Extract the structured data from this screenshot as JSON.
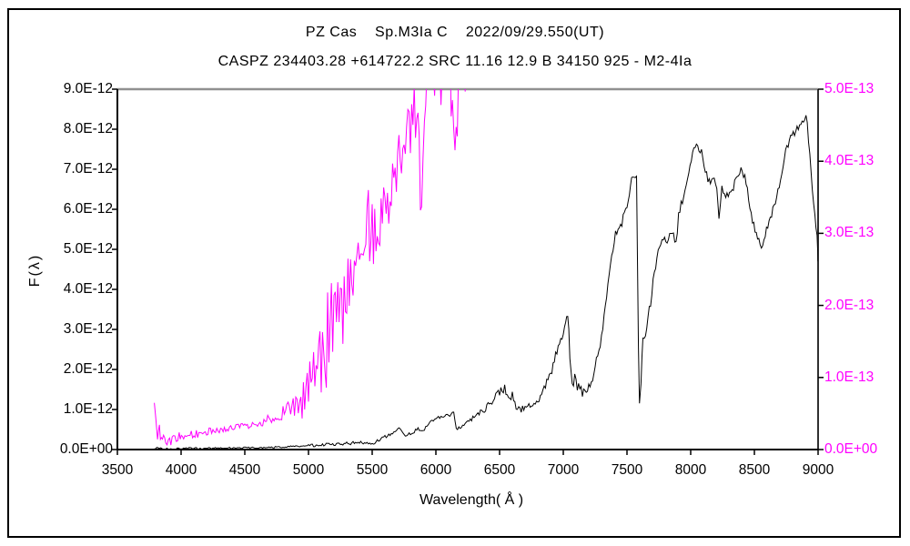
{
  "window": {
    "background": "#ffffff",
    "outer_border_color": "#000000"
  },
  "chart_data": {
    "type": "line",
    "title": "PZ Cas    Sp.M3Ia C    2022/09/29.550(UT)",
    "subtitle": "CASPZ 234403.28 +614722.2 SRC 11.16 12.9 B 34150 925 - M2-4Ia",
    "xlabel": "Wavelength( Å )",
    "ylabel_left": "F(λ)",
    "grid": false,
    "legend_position": "none",
    "xlim": [
      3500,
      9000
    ],
    "x_ticks": [
      "3500",
      "4000",
      "4500",
      "5000",
      "5500",
      "6000",
      "6500",
      "7000",
      "7500",
      "8000",
      "8500",
      "9000"
    ],
    "y_left": {
      "unit_exponent": "1E-12",
      "lim": [
        0,
        9
      ],
      "ticks": [
        "0.0E+00",
        "1.0E-12",
        "2.0E-12",
        "3.0E-12",
        "4.0E-12",
        "5.0E-12",
        "6.0E-12",
        "7.0E-12",
        "8.0E-12",
        "9.0E-12"
      ],
      "color": "#000000"
    },
    "y_right": {
      "unit_exponent": "1E-13",
      "lim": [
        0,
        5
      ],
      "ticks": [
        "0.0E+00",
        "1.0E-13",
        "2.0E-13",
        "3.0E-13",
        "4.0E-13",
        "5.0E-13"
      ],
      "color": "#ff00ff"
    },
    "frame_colors": {
      "top": "#909090",
      "right": "#303030",
      "left": "#000000",
      "bottom": "#000000"
    },
    "series": [
      {
        "name": "red-region-spectrum-black",
        "axis": "left",
        "color": "#000000",
        "points_format": [
          "wavelength_A",
          "flux_1E-12",
          "noise_amplitude"
        ],
        "points": [
          [
            3790,
            0.03,
            0.03
          ],
          [
            3850,
            0.02,
            0.03
          ],
          [
            3900,
            0.02,
            0.02
          ],
          [
            3980,
            0.02,
            0.02
          ],
          [
            4060,
            0.03,
            0.02
          ],
          [
            4150,
            0.03,
            0.03
          ],
          [
            4250,
            0.03,
            0.02
          ],
          [
            4350,
            0.04,
            0.02
          ],
          [
            4450,
            0.04,
            0.02
          ],
          [
            4550,
            0.05,
            0.02
          ],
          [
            4650,
            0.05,
            0.02
          ],
          [
            4750,
            0.06,
            0.02
          ],
          [
            4850,
            0.07,
            0.02
          ],
          [
            4950,
            0.08,
            0.03
          ],
          [
            5000,
            0.1,
            0.04
          ],
          [
            5100,
            0.12,
            0.04
          ],
          [
            5200,
            0.13,
            0.04
          ],
          [
            5300,
            0.15,
            0.04
          ],
          [
            5400,
            0.18,
            0.04
          ],
          [
            5460,
            0.16,
            0.03
          ],
          [
            5510,
            0.14,
            0.03
          ],
          [
            5560,
            0.26,
            0.04
          ],
          [
            5620,
            0.35,
            0.05
          ],
          [
            5670,
            0.46,
            0.05
          ],
          [
            5710,
            0.5,
            0.05
          ],
          [
            5760,
            0.36,
            0.04
          ],
          [
            5810,
            0.42,
            0.04
          ],
          [
            5860,
            0.52,
            0.05
          ],
          [
            5900,
            0.48,
            0.04
          ],
          [
            5950,
            0.66,
            0.05
          ],
          [
            6000,
            0.76,
            0.05
          ],
          [
            6060,
            0.82,
            0.05
          ],
          [
            6110,
            0.86,
            0.06
          ],
          [
            6140,
            0.9,
            0.04
          ],
          [
            6160,
            0.52,
            0.04
          ],
          [
            6210,
            0.56,
            0.05
          ],
          [
            6260,
            0.72,
            0.06
          ],
          [
            6310,
            0.86,
            0.07
          ],
          [
            6360,
            0.96,
            0.08
          ],
          [
            6410,
            1.1,
            0.1
          ],
          [
            6460,
            1.28,
            0.1
          ],
          [
            6510,
            1.45,
            0.12
          ],
          [
            6540,
            1.55,
            0.1
          ],
          [
            6570,
            1.26,
            0.08
          ],
          [
            6600,
            1.38,
            0.1
          ],
          [
            6630,
            1.06,
            0.08
          ],
          [
            6670,
            1.0,
            0.08
          ],
          [
            6710,
            1.06,
            0.08
          ],
          [
            6760,
            1.16,
            0.07
          ],
          [
            6810,
            1.22,
            0.08
          ],
          [
            6860,
            1.62,
            0.1
          ],
          [
            6910,
            2.0,
            0.12
          ],
          [
            6960,
            2.55,
            0.12
          ],
          [
            7010,
            3.05,
            0.12
          ],
          [
            7035,
            3.4,
            0.08
          ],
          [
            7060,
            1.9,
            0.2
          ],
          [
            7110,
            1.55,
            0.2
          ],
          [
            7160,
            1.45,
            0.15
          ],
          [
            7210,
            1.52,
            0.15
          ],
          [
            7260,
            2.25,
            0.15
          ],
          [
            7310,
            2.95,
            0.12
          ],
          [
            7360,
            4.45,
            0.15
          ],
          [
            7410,
            5.4,
            0.15
          ],
          [
            7460,
            5.6,
            0.2
          ],
          [
            7510,
            6.3,
            0.15
          ],
          [
            7545,
            6.9,
            0.1
          ],
          [
            7575,
            6.8,
            0.05
          ],
          [
            7590,
            2.6,
            0.1
          ],
          [
            7598,
            1.15,
            0.05
          ],
          [
            7610,
            1.7,
            0.3
          ],
          [
            7625,
            2.6,
            0.3
          ],
          [
            7655,
            2.95,
            0.15
          ],
          [
            7705,
            4.2,
            0.15
          ],
          [
            7755,
            5.1,
            0.12
          ],
          [
            7805,
            5.2,
            0.15
          ],
          [
            7855,
            5.35,
            0.15
          ],
          [
            7885,
            5.15,
            0.1
          ],
          [
            7905,
            5.8,
            0.12
          ],
          [
            7955,
            6.55,
            0.12
          ],
          [
            8005,
            7.3,
            0.1
          ],
          [
            8045,
            7.65,
            0.08
          ],
          [
            8085,
            7.4,
            0.15
          ],
          [
            8125,
            6.85,
            0.15
          ],
          [
            8165,
            6.7,
            0.12
          ],
          [
            8205,
            6.6,
            0.15
          ],
          [
            8222,
            5.7,
            0.08
          ],
          [
            8245,
            6.5,
            0.1
          ],
          [
            8285,
            6.35,
            0.1
          ],
          [
            8325,
            6.45,
            0.12
          ],
          [
            8365,
            6.8,
            0.1
          ],
          [
            8395,
            7.0,
            0.08
          ],
          [
            8425,
            6.8,
            0.1
          ],
          [
            8455,
            6.3,
            0.1
          ],
          [
            8485,
            5.7,
            0.1
          ],
          [
            8525,
            5.25,
            0.1
          ],
          [
            8555,
            5.05,
            0.08
          ],
          [
            8585,
            5.4,
            0.1
          ],
          [
            8625,
            5.8,
            0.1
          ],
          [
            8665,
            6.2,
            0.1
          ],
          [
            8705,
            6.7,
            0.1
          ],
          [
            8745,
            7.4,
            0.1
          ],
          [
            8785,
            7.8,
            0.1
          ],
          [
            8825,
            8.0,
            0.12
          ],
          [
            8865,
            8.15,
            0.12
          ],
          [
            8895,
            8.3,
            0.1
          ],
          [
            8915,
            8.2,
            0.1
          ],
          [
            8935,
            7.4,
            0.15
          ],
          [
            8955,
            6.55,
            0.1
          ],
          [
            8975,
            5.8,
            0.1
          ],
          [
            8992,
            5.3,
            0.08
          ],
          [
            9000,
            4.7,
            0.03
          ]
        ]
      },
      {
        "name": "blue-region-spectrum-magenta",
        "axis": "right",
        "color": "#ff00ff",
        "points_format": [
          "wavelength_A",
          "flux_1E-13",
          "noise_amplitude"
        ],
        "points": [
          [
            3790,
            0.65,
            0.05
          ],
          [
            3802,
            0.4,
            0.1
          ],
          [
            3815,
            0.22,
            0.08
          ],
          [
            3830,
            0.3,
            0.1
          ],
          [
            3845,
            0.12,
            0.08
          ],
          [
            3862,
            0.18,
            0.08
          ],
          [
            3880,
            0.1,
            0.07
          ],
          [
            3900,
            0.14,
            0.08
          ],
          [
            3920,
            0.08,
            0.06
          ],
          [
            3940,
            0.15,
            0.07
          ],
          [
            3962,
            0.12,
            0.06
          ],
          [
            3985,
            0.18,
            0.06
          ],
          [
            4010,
            0.16,
            0.05
          ],
          [
            4060,
            0.2,
            0.05
          ],
          [
            4110,
            0.21,
            0.06
          ],
          [
            4160,
            0.23,
            0.05
          ],
          [
            4210,
            0.25,
            0.05
          ],
          [
            4260,
            0.26,
            0.05
          ],
          [
            4310,
            0.28,
            0.05
          ],
          [
            4360,
            0.3,
            0.05
          ],
          [
            4410,
            0.3,
            0.06
          ],
          [
            4460,
            0.32,
            0.05
          ],
          [
            4510,
            0.33,
            0.05
          ],
          [
            4560,
            0.34,
            0.05
          ],
          [
            4610,
            0.37,
            0.06
          ],
          [
            4660,
            0.4,
            0.07
          ],
          [
            4710,
            0.44,
            0.08
          ],
          [
            4760,
            0.48,
            0.09
          ],
          [
            4810,
            0.52,
            0.1
          ],
          [
            4840,
            0.6,
            0.12
          ],
          [
            4870,
            0.56,
            0.1
          ],
          [
            4900,
            0.66,
            0.2
          ],
          [
            4930,
            0.85,
            0.45
          ],
          [
            4960,
            0.9,
            0.55
          ],
          [
            4990,
            1.0,
            0.65
          ],
          [
            5030,
            1.05,
            0.55
          ],
          [
            5080,
            1.25,
            0.55
          ],
          [
            5130,
            1.45,
            0.7
          ],
          [
            5160,
            1.6,
            0.9
          ],
          [
            5200,
            1.7,
            0.55
          ],
          [
            5250,
            1.9,
            0.5
          ],
          [
            5300,
            2.1,
            0.55
          ],
          [
            5350,
            2.2,
            0.45
          ],
          [
            5400,
            2.45,
            0.5
          ],
          [
            5440,
            2.65,
            0.55
          ],
          [
            5470,
            2.9,
            0.75
          ],
          [
            5510,
            2.95,
            0.4
          ],
          [
            5550,
            3.15,
            0.45
          ],
          [
            5600,
            3.3,
            0.45
          ],
          [
            5650,
            3.6,
            0.5
          ],
          [
            5700,
            3.9,
            0.45
          ],
          [
            5750,
            4.2,
            0.5
          ],
          [
            5800,
            4.45,
            0.45
          ],
          [
            5850,
            4.8,
            0.4
          ],
          [
            5888,
            3.4,
            0.7
          ],
          [
            5910,
            4.9,
            0.4
          ],
          [
            5950,
            5.2,
            0.5
          ],
          [
            6000,
            5.4,
            0.5
          ],
          [
            6050,
            5.3,
            0.55
          ],
          [
            6100,
            5.5,
            0.5
          ],
          [
            6150,
            4.3,
            0.7
          ],
          [
            6195,
            5.4,
            0.45
          ],
          [
            6230,
            4.85,
            0.45
          ],
          [
            6255,
            5.3,
            0.35
          ],
          [
            6275,
            5.6,
            0.25
          ]
        ]
      }
    ]
  }
}
